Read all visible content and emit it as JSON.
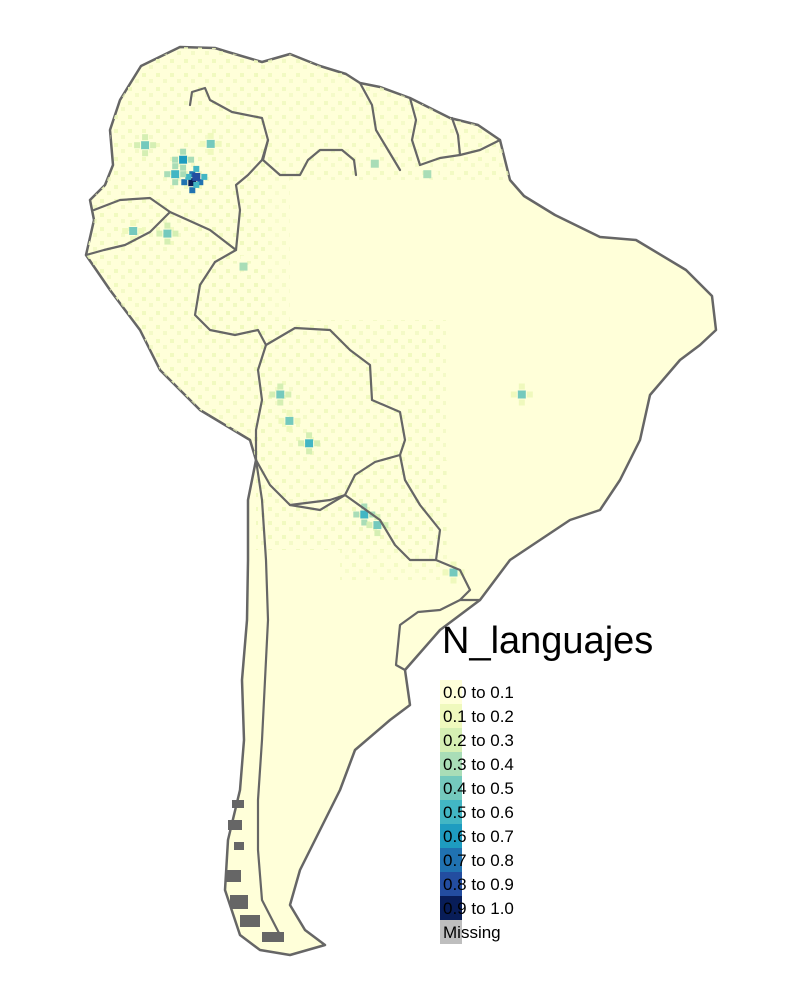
{
  "legend": {
    "title": "N_languajes",
    "items": [
      {
        "label": "0.0 to 0.1",
        "color": "#ffffd9"
      },
      {
        "label": "0.1 to 0.2",
        "color": "#eff9bd"
      },
      {
        "label": "0.2 to 0.3",
        "color": "#d5efb3"
      },
      {
        "label": "0.3 to 0.4",
        "color": "#a9ddb7"
      },
      {
        "label": "0.4 to 0.5",
        "color": "#74c9bd"
      },
      {
        "label": "0.5 to 0.6",
        "color": "#42b6c4"
      },
      {
        "label": "0.6 to 0.7",
        "color": "#1e9cc0"
      },
      {
        "label": "0.7 to 0.8",
        "color": "#2072b1"
      },
      {
        "label": "0.8 to 0.9",
        "color": "#234da0"
      },
      {
        "label": "0.9 to 1.0",
        "color": "#081d58"
      },
      {
        "label": "Missing",
        "color": "#bebebe"
      }
    ]
  },
  "map": {
    "land_color": "#ffffd9",
    "border_color": "#666666",
    "hotspots": [
      {
        "lon": -73.9,
        "lat": 2.6,
        "value": 0.95
      },
      {
        "lon": -73.6,
        "lat": 3.0,
        "value": 0.82
      },
      {
        "lon": -74.6,
        "lat": 4.3,
        "value": 0.62
      },
      {
        "lon": -75.2,
        "lat": 3.2,
        "value": 0.55
      },
      {
        "lon": -77.5,
        "lat": 5.4,
        "value": 0.45
      },
      {
        "lon": -75.8,
        "lat": -1.3,
        "value": 0.45
      },
      {
        "lon": -78.4,
        "lat": -1.1,
        "value": 0.4
      },
      {
        "lon": -67.2,
        "lat": -13.5,
        "value": 0.45
      },
      {
        "lon": -65.0,
        "lat": -17.2,
        "value": 0.5
      },
      {
        "lon": -66.5,
        "lat": -15.5,
        "value": 0.4
      },
      {
        "lon": -60.8,
        "lat": -22.6,
        "value": 0.55
      },
      {
        "lon": -59.8,
        "lat": -23.4,
        "value": 0.45
      },
      {
        "lon": -48.8,
        "lat": -13.5,
        "value": 0.4
      },
      {
        "lon": -54.0,
        "lat": -27.0,
        "value": 0.4
      },
      {
        "lon": -60.0,
        "lat": 4.0,
        "value": 0.35
      },
      {
        "lon": -56.0,
        "lat": 3.2,
        "value": 0.3
      },
      {
        "lon": -72.5,
        "lat": 5.5,
        "value": 0.4
      },
      {
        "lon": -70.0,
        "lat": -3.8,
        "value": 0.35
      }
    ]
  }
}
